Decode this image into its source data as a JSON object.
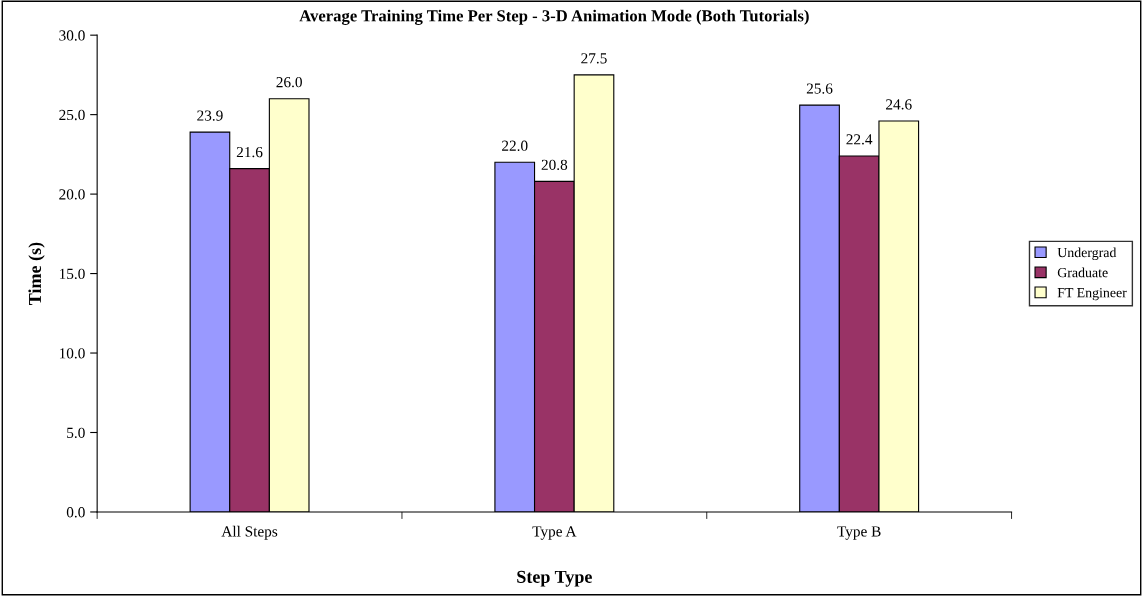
{
  "chart_data": {
    "type": "bar",
    "title": "Average Training Time Per Step - 3-D Animation Mode (Both Tutorials)",
    "xlabel": "Step Type",
    "ylabel": "Time (s)",
    "categories": [
      "All Steps",
      "Type A",
      "Type B"
    ],
    "series": [
      {
        "name": "Undergrad",
        "color": "#9999ff",
        "values": [
          23.9,
          22.0,
          25.6
        ]
      },
      {
        "name": "Graduate",
        "color": "#993366",
        "values": [
          21.6,
          20.8,
          22.4
        ]
      },
      {
        "name": "FT Engineer",
        "color": "#ffffcc",
        "values": [
          26.0,
          27.5,
          24.6
        ]
      }
    ],
    "ylim": [
      0,
      30
    ],
    "yticks": [
      {
        "value": 0,
        "label": "0.0"
      },
      {
        "value": 5,
        "label": "5.0"
      },
      {
        "value": 10,
        "label": "10.0"
      },
      {
        "value": 15,
        "label": "15.0"
      },
      {
        "value": 20,
        "label": "20.0"
      },
      {
        "value": 25,
        "label": "25.0"
      },
      {
        "value": 30,
        "label": "30.0"
      }
    ],
    "value_labels": [
      [
        "23.9",
        "22.0",
        "25.6"
      ],
      [
        "21.6",
        "20.8",
        "22.4"
      ],
      [
        "26.0",
        "27.5",
        "24.6"
      ]
    ],
    "legend": "right",
    "grid": false
  }
}
